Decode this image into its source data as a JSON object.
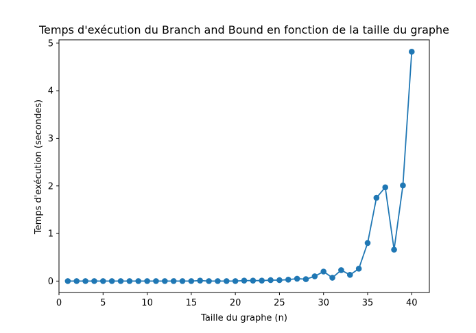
{
  "chart_data": {
    "type": "line",
    "title": "Temps d'exécution du Branch and Bound en fonction de la taille du graphe",
    "xlabel": "Taille du graphe (n)",
    "ylabel": "Temps d'exécution (secondes)",
    "xlim": [
      0.0,
      42.0
    ],
    "ylim": [
      -0.24,
      5.07
    ],
    "xticks": [
      0,
      5,
      10,
      15,
      20,
      25,
      30,
      35,
      40
    ],
    "yticks": [
      0,
      1,
      2,
      3,
      4,
      5
    ],
    "grid": false,
    "marker": "circle",
    "color": "#1f77b4",
    "series": [
      {
        "x": [
          1,
          2,
          3,
          4,
          5,
          6,
          7,
          8,
          9,
          10,
          11,
          12,
          13,
          14,
          15,
          16,
          17,
          18,
          19,
          20,
          21,
          22,
          23,
          24,
          25,
          26,
          27,
          28,
          29,
          30,
          31,
          32,
          33,
          34,
          35,
          36,
          37,
          38,
          39,
          40
        ],
        "values": [
          0.0,
          0.0,
          0.0,
          0.0,
          0.0,
          0.0,
          0.0,
          0.0,
          0.0,
          0.0,
          0.0,
          0.0,
          0.0,
          0.0,
          0.0,
          0.01,
          0.0,
          0.0,
          0.0,
          0.0,
          0.01,
          0.01,
          0.01,
          0.02,
          0.02,
          0.03,
          0.05,
          0.04,
          0.1,
          0.2,
          0.07,
          0.23,
          0.13,
          0.26,
          0.8,
          1.75,
          1.97,
          0.66,
          2.01,
          4.82
        ]
      }
    ]
  }
}
